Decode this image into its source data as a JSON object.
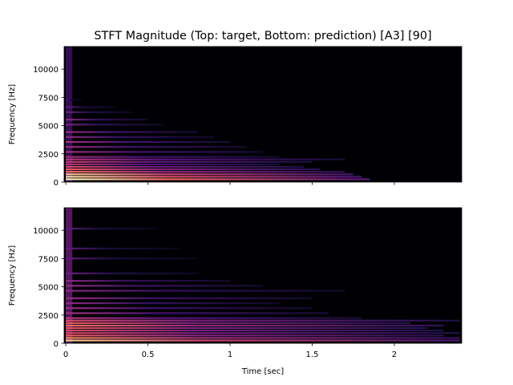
{
  "chart_data": {
    "type": "heatmap",
    "title": "STFT Magnitude (Top: target, Bottom: prediction) [A3] [90]",
    "colormap": "magma",
    "xlim": [
      -0.01,
      2.41
    ],
    "ylim": [
      0,
      12000
    ],
    "panels": [
      {
        "name": "target",
        "ylabel": "Frequency [Hz]",
        "xlabel": "",
        "yticks": [
          0,
          2500,
          5000,
          7500,
          10000
        ],
        "ytick_labels": [
          "0",
          "2500",
          "5000",
          "7500",
          "10000"
        ],
        "xticks": [
          0,
          0.5,
          1,
          1.5,
          2
        ],
        "xtick_labels": [],
        "fundamental_hz": 220,
        "harmonics": [
          {
            "hz": 220,
            "end_sec": 1.85,
            "intensity": 0.9
          },
          {
            "hz": 440,
            "end_sec": 1.8,
            "intensity": 0.8
          },
          {
            "hz": 660,
            "end_sec": 1.75,
            "intensity": 0.75
          },
          {
            "hz": 880,
            "end_sec": 1.7,
            "intensity": 0.55
          },
          {
            "hz": 1100,
            "end_sec": 1.55,
            "intensity": 0.5
          },
          {
            "hz": 1320,
            "end_sec": 1.45,
            "intensity": 0.45
          },
          {
            "hz": 1540,
            "end_sec": 1.3,
            "intensity": 0.35
          },
          {
            "hz": 1760,
            "end_sec": 1.5,
            "intensity": 0.4
          },
          {
            "hz": 1980,
            "end_sec": 1.7,
            "intensity": 0.35
          },
          {
            "hz": 2200,
            "end_sec": 1.3,
            "intensity": 0.3
          },
          {
            "hz": 2640,
            "end_sec": 1.2,
            "intensity": 0.3
          },
          {
            "hz": 3080,
            "end_sec": 1.1,
            "intensity": 0.28
          },
          {
            "hz": 3520,
            "end_sec": 1.0,
            "intensity": 0.3
          },
          {
            "hz": 3960,
            "end_sec": 0.9,
            "intensity": 0.25
          },
          {
            "hz": 4400,
            "end_sec": 0.8,
            "intensity": 0.28
          },
          {
            "hz": 5060,
            "end_sec": 0.6,
            "intensity": 0.22
          },
          {
            "hz": 5500,
            "end_sec": 0.5,
            "intensity": 0.25
          },
          {
            "hz": 6160,
            "end_sec": 0.4,
            "intensity": 0.18
          },
          {
            "hz": 6600,
            "end_sec": 0.3,
            "intensity": 0.15
          },
          {
            "hz": 7260,
            "end_sec": 0.1,
            "intensity": 0.12
          }
        ]
      },
      {
        "name": "prediction",
        "ylabel": "Frequency [Hz]",
        "xlabel": "Time [sec]",
        "yticks": [
          0,
          2500,
          5000,
          7500,
          10000
        ],
        "ytick_labels": [
          "0",
          "2500",
          "5000",
          "7500",
          "10000"
        ],
        "xticks": [
          0,
          0.5,
          1,
          1.5,
          2
        ],
        "xtick_labels": [
          "0",
          "0.5",
          "1",
          "1.5",
          "2"
        ],
        "fundamental_hz": 220,
        "harmonics": [
          {
            "hz": 220,
            "end_sec": 2.4,
            "intensity": 0.75
          },
          {
            "hz": 440,
            "end_sec": 2.4,
            "intensity": 0.6
          },
          {
            "hz": 660,
            "end_sec": 2.3,
            "intensity": 0.5
          },
          {
            "hz": 880,
            "end_sec": 2.4,
            "intensity": 0.45
          },
          {
            "hz": 1100,
            "end_sec": 2.3,
            "intensity": 0.45
          },
          {
            "hz": 1320,
            "end_sec": 2.2,
            "intensity": 0.5
          },
          {
            "hz": 1540,
            "end_sec": 2.3,
            "intensity": 0.55
          },
          {
            "hz": 1760,
            "end_sec": 2.1,
            "intensity": 0.5
          },
          {
            "hz": 1980,
            "end_sec": 2.4,
            "intensity": 0.45
          },
          {
            "hz": 2200,
            "end_sec": 1.8,
            "intensity": 0.35
          },
          {
            "hz": 2640,
            "end_sec": 1.6,
            "intensity": 0.3
          },
          {
            "hz": 3080,
            "end_sec": 1.5,
            "intensity": 0.28
          },
          {
            "hz": 3520,
            "end_sec": 1.3,
            "intensity": 0.25
          },
          {
            "hz": 3960,
            "end_sec": 1.5,
            "intensity": 0.28
          },
          {
            "hz": 4620,
            "end_sec": 1.7,
            "intensity": 0.25
          },
          {
            "hz": 5060,
            "end_sec": 1.2,
            "intensity": 0.28
          },
          {
            "hz": 5500,
            "end_sec": 1.0,
            "intensity": 0.25
          },
          {
            "hz": 6160,
            "end_sec": 0.8,
            "intensity": 0.18
          },
          {
            "hz": 7480,
            "end_sec": 0.8,
            "intensity": 0.15
          },
          {
            "hz": 8360,
            "end_sec": 0.7,
            "intensity": 0.15
          },
          {
            "hz": 10120,
            "end_sec": 0.55,
            "intensity": 0.15
          }
        ]
      }
    ]
  }
}
